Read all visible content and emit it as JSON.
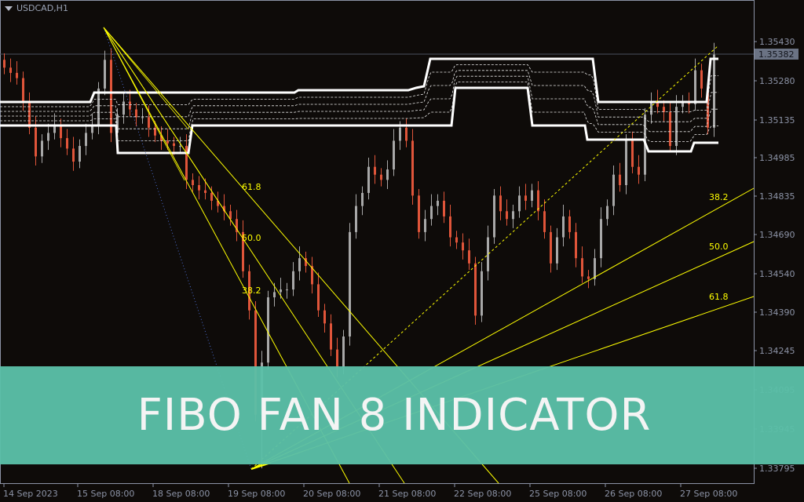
{
  "title": "USDCAD,H1",
  "banner": "FIBO FAN 8 INDICATOR",
  "colors": {
    "background": "#0e0b09",
    "bull": "#a8a8a8",
    "bear": "#e0553a",
    "fan": "#ffff00",
    "band": "#ffffff",
    "banner": "#5bbfa8",
    "axis": "#8c93a6"
  },
  "chart_data": {
    "type": "candlestick",
    "symbol": "USDCAD",
    "timeframe": "H1",
    "ylim": [
      1.3375,
      1.3548
    ],
    "current_price": "1.35382",
    "y_ticks": [
      "1.35430",
      "1.35280",
      "1.35135",
      "1.34985",
      "1.34835",
      "1.34690",
      "1.34540",
      "1.34390",
      "1.34245",
      "1.34095",
      "1.33945",
      "1.33795"
    ],
    "x_ticks": [
      "14 Sep 2023",
      "15 Sep 08:00",
      "18 Sep 08:00",
      "19 Sep 08:00",
      "20 Sep 08:00",
      "21 Sep 08:00",
      "22 Sep 08:00",
      "25 Sep 08:00",
      "26 Sep 08:00",
      "27 Sep 08:00"
    ],
    "closes": [
      1.3533,
      1.3531,
      1.3529,
      1.352,
      1.351,
      1.3499,
      1.3505,
      1.3508,
      1.3511,
      1.3506,
      1.3502,
      1.3497,
      1.3503,
      1.3508,
      1.3511,
      1.3525,
      1.3536,
      1.3508,
      1.3515,
      1.352,
      1.3517,
      1.3514,
      1.3514,
      1.351,
      1.3507,
      1.3505,
      1.3504,
      1.3503,
      1.3503,
      1.349,
      1.3488,
      1.3486,
      1.3485,
      1.3482,
      1.348,
      1.3478,
      1.3475,
      1.347,
      1.3455,
      1.344,
      1.34,
      1.342,
      1.3445,
      1.3447,
      1.3448,
      1.3448,
      1.3455,
      1.346,
      1.3457,
      1.345,
      1.344,
      1.3435,
      1.3425,
      1.3418,
      1.343,
      1.347,
      1.348,
      1.3485,
      1.3495,
      1.3492,
      1.349,
      1.3494,
      1.3505,
      1.351,
      1.3505,
      1.3484,
      1.347,
      1.3475,
      1.348,
      1.3482,
      1.3476,
      1.3468,
      1.3466,
      1.3463,
      1.3458,
      1.3438,
      1.3455,
      1.3468,
      1.3484,
      1.3478,
      1.3475,
      1.3478,
      1.3484,
      1.3482,
      1.3486,
      1.3478,
      1.347,
      1.3458,
      1.3468,
      1.3476,
      1.347,
      1.346,
      1.3453,
      1.3452,
      1.346,
      1.3475,
      1.348,
      1.3492,
      1.3488,
      1.3505,
      1.3495,
      1.3492,
      1.3515,
      1.352,
      1.3518,
      1.3516,
      1.3503,
      1.3518,
      1.352,
      1.3519,
      1.3532,
      1.3525,
      1.351,
      1.3538
    ],
    "fan_down_labels": [
      "61.8",
      "50.0",
      "38.2"
    ],
    "fan_up_labels": [
      "38.2",
      "50.0",
      "61.8"
    ]
  }
}
